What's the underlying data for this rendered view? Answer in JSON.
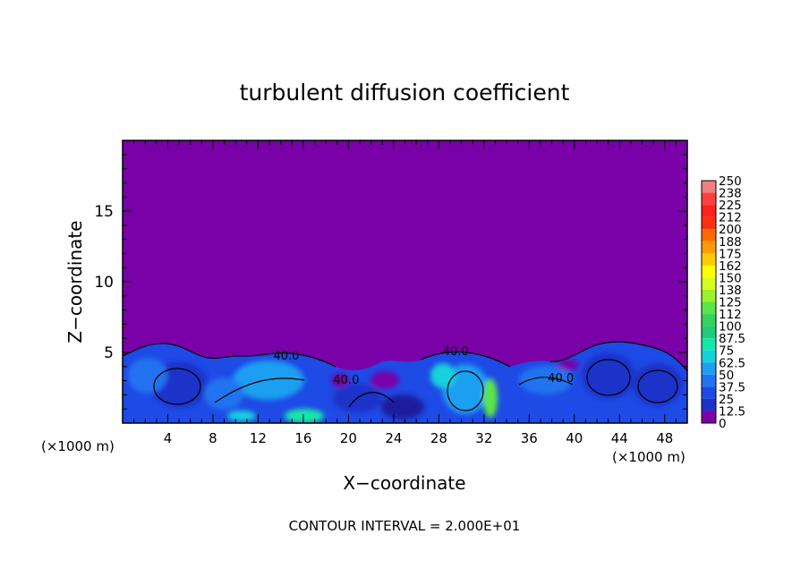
{
  "chart_data": {
    "type": "heatmap",
    "title": "turbulent diffusion coefficient",
    "xlabel": "X−coordinate",
    "ylabel": "Z−coordinate",
    "x_unit_left": "(×1000 m)",
    "x_unit_right": "(×1000 m)",
    "xlim": [
      0,
      50
    ],
    "ylim": [
      0,
      20
    ],
    "x_ticks": [
      4,
      8,
      12,
      16,
      20,
      24,
      28,
      32,
      36,
      40,
      44,
      48
    ],
    "y_ticks": [
      5,
      10,
      15
    ],
    "contour_labels": [
      {
        "text": "40.0",
        "x": 14.5,
        "z": 4.5
      },
      {
        "text": "40.0",
        "x": 29.5,
        "z": 4.8
      },
      {
        "text": "40.0",
        "x": 19.8,
        "z": 2.8
      },
      {
        "text": "40.0",
        "x": 38.8,
        "z": 2.9
      }
    ],
    "colorbar": {
      "labels": [
        "250",
        "238",
        "225",
        "212",
        "200",
        "188",
        "175",
        "162",
        "150",
        "138",
        "125",
        "112",
        "100",
        "87.5",
        "75",
        "62.5",
        "50",
        "37.5",
        "25",
        "12.5",
        "0"
      ],
      "colors": [
        "#f08080",
        "#ff4040",
        "#ff2020",
        "#ff3010",
        "#ff6a00",
        "#ff9a00",
        "#ffcc00",
        "#ffff00",
        "#d2ff1e",
        "#9cf22a",
        "#5ae646",
        "#34d25a",
        "#1ecc78",
        "#14e6aa",
        "#14d2dc",
        "#1e9ff0",
        "#2173f0",
        "#1e4ae6",
        "#1e32c8",
        "#1e1e9c"
      ],
      "bottom_color": "#7a00a8"
    },
    "background_color": "#7a00a8",
    "footer": "CONTOUR INTERVAL = 2.000E+01"
  }
}
